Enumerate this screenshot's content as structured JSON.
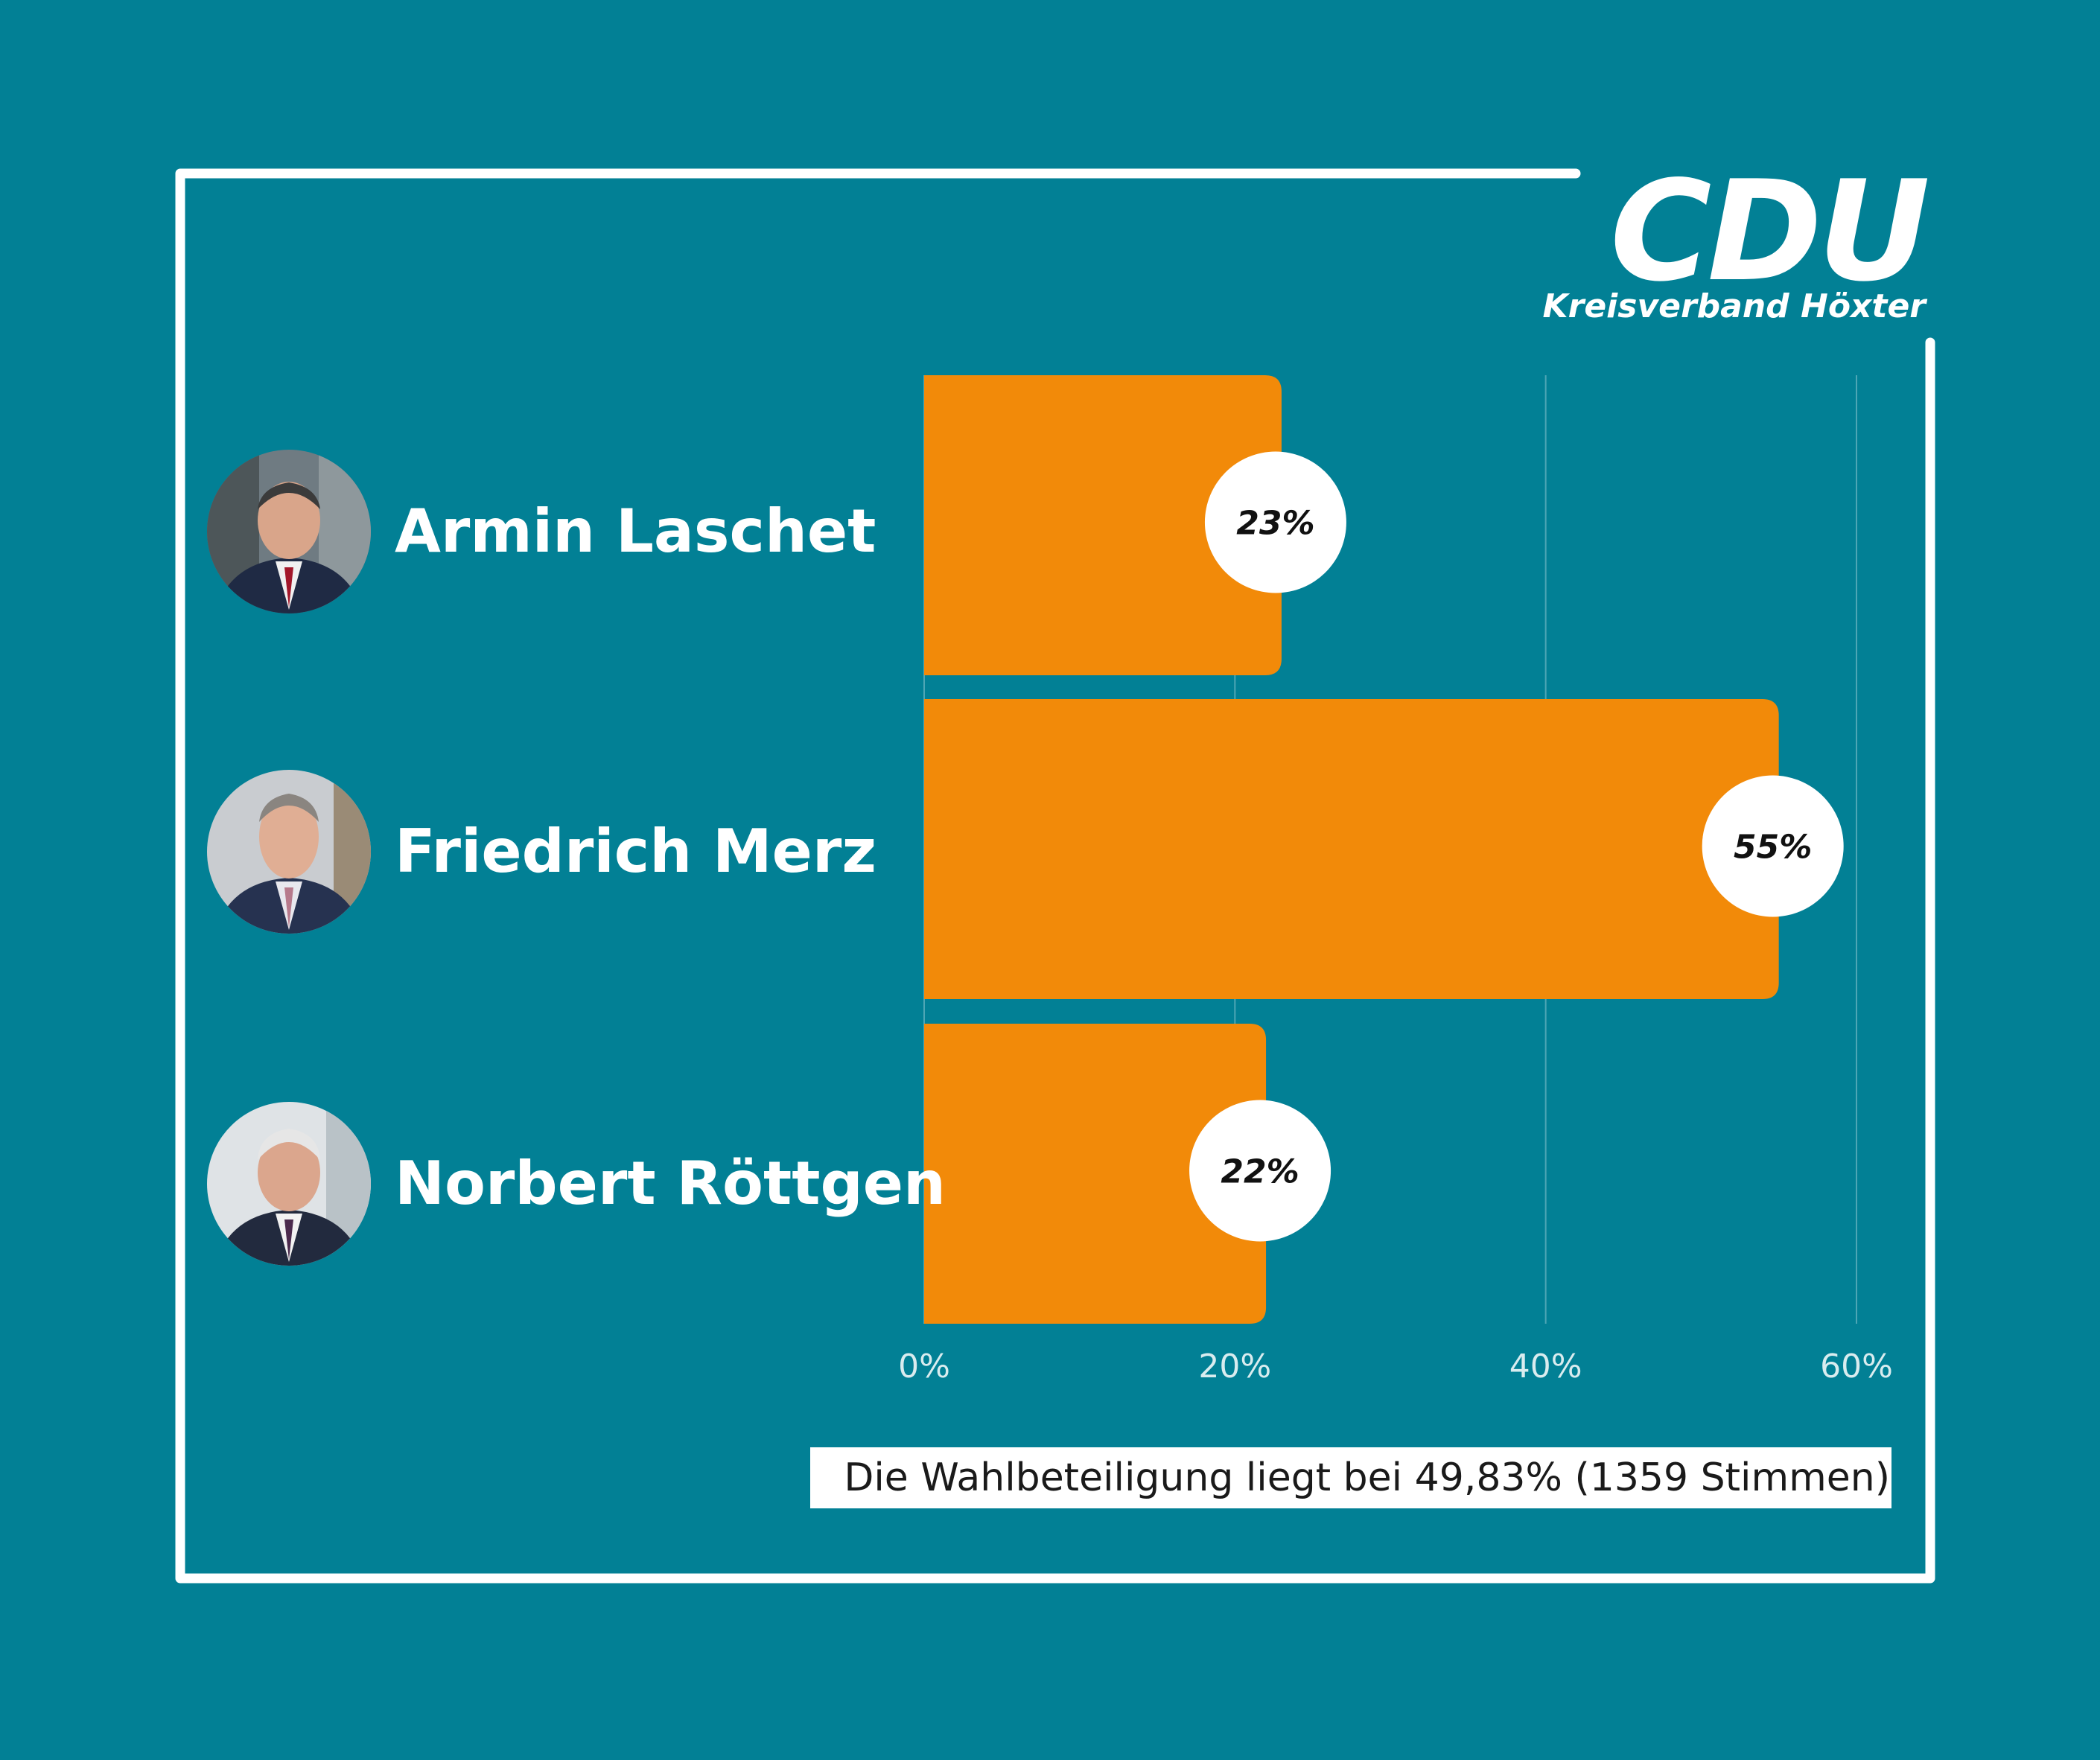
{
  "logo": {
    "name": "CDU",
    "subtitle": "Kreisverband Höxter"
  },
  "colors": {
    "background": "#028095",
    "bar": "#F28A09",
    "frame": "#ffffff",
    "label_bubble": "#ffffff"
  },
  "candidates": [
    {
      "name": "Armin Laschet",
      "avatar_icon": "portrait-photo-icon"
    },
    {
      "name": "Friedrich Merz",
      "avatar_icon": "portrait-photo-icon"
    },
    {
      "name": "Norbert Röttgen",
      "avatar_icon": "portrait-photo-icon"
    }
  ],
  "chart_data": {
    "type": "bar",
    "orientation": "horizontal",
    "categories": [
      "Armin Laschet",
      "Friedrich Merz",
      "Norbert Röttgen"
    ],
    "values": [
      23,
      55,
      22
    ],
    "data_labels": [
      "23%",
      "55%",
      "22%"
    ],
    "xlim": [
      0,
      60
    ],
    "x_ticks": [
      0,
      20,
      40,
      60
    ],
    "x_tick_labels": [
      "0%",
      "20%",
      "40%",
      "60%"
    ],
    "grid": true
  },
  "footnote": "Die Wahlbeteiligung liegt bei 49,83% (1359 Stimmen)"
}
